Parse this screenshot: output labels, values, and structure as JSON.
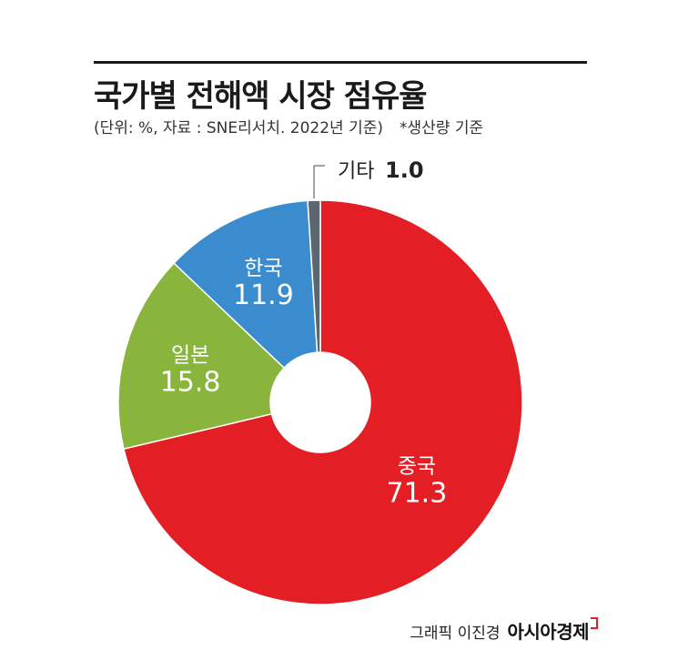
{
  "title": "국가별 전해액 시장 점유율",
  "subtitle": "(단위: %, 자료 : SNE리서치. 2022년 기준)",
  "subtitle_note": "*생산량 기준",
  "credit": "그래픽 이진경",
  "brand": "아시아경제",
  "chart_data": {
    "type": "pie",
    "donut": true,
    "title": "국가별 전해액 시장 점유율",
    "unit": "%",
    "slices": [
      {
        "label": "중국",
        "value": 71.3,
        "value_text": "71.3",
        "color": "#e31e24",
        "label_color": "#ffffff"
      },
      {
        "label": "일본",
        "value": 15.8,
        "value_text": "15.8",
        "color": "#8ab53c",
        "label_color": "#ffffff"
      },
      {
        "label": "한국",
        "value": 11.9,
        "value_text": "11.9",
        "color": "#3a8cce",
        "label_color": "#ffffff"
      },
      {
        "label": "기타",
        "value": 1.0,
        "value_text": "1.0",
        "color": "#5b6670",
        "label_color": "#222222",
        "callout": true
      }
    ]
  }
}
